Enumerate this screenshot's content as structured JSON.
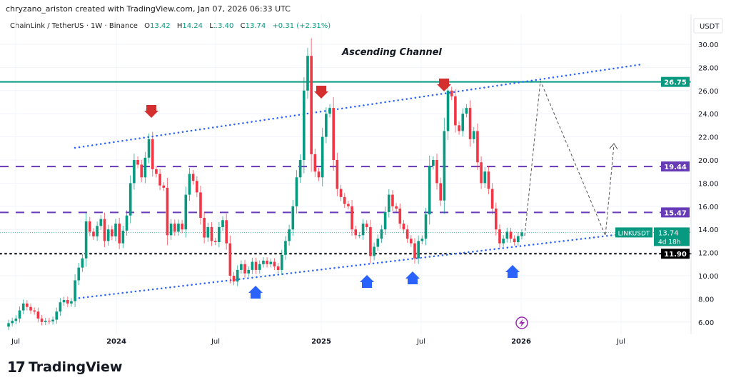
{
  "credit": "chryzano_ariston created with TradingView.com, Jan 07, 2026 06:33 UTC",
  "legend": {
    "symbol": "ChainLink / TetherUS · 1W · Binance",
    "o_label": "O",
    "o": "13.42",
    "h_label": "H",
    "h": "14.24",
    "l_label": "L",
    "l": "13.40",
    "c_label": "C",
    "c": "13.74",
    "change": "+0.31 (+2.31%)"
  },
  "logo": {
    "mark": "17",
    "text": "TradingView"
  },
  "colors": {
    "up": "#089981",
    "down": "#f23645",
    "resistance": "#089981",
    "levels": "#673ab7",
    "channel": "#2962ff",
    "support": "#000000",
    "arrow_down": "#d32f2f",
    "arrow_up": "#2962ff"
  },
  "chart_data": {
    "type": "candlestick",
    "interval": "1W",
    "title": "Ascending Channel",
    "currency": "USDT",
    "ylim": [
      5,
      31.5
    ],
    "y_ticks": [
      "6.00",
      "8.00",
      "10.00",
      "12.00",
      "14.00",
      "16.00",
      "18.00",
      "20.00",
      "22.00",
      "24.00",
      "26.00",
      "28.00",
      "30.00"
    ],
    "x_ticks": [
      "Jul",
      "2024",
      "Jul",
      "2025",
      "Jul",
      "2026",
      "Jul"
    ],
    "first_open": 5.6,
    "close": [
      5.9,
      6.1,
      6.3,
      7.0,
      7.6,
      7.3,
      7.0,
      6.9,
      6.3,
      6.0,
      6.1,
      6.05,
      6.2,
      6.9,
      7.7,
      7.9,
      7.6,
      7.8,
      9.6,
      10.7,
      11.5,
      14.7,
      13.8,
      13.4,
      14.3,
      14.9,
      13.0,
      14.0,
      13.4,
      14.5,
      12.8,
      13.9,
      15.2,
      18.0,
      20.0,
      19.6,
      18.5,
      20.2,
      21.8,
      19.2,
      18.8,
      17.8,
      17.6,
      13.5,
      14.5,
      13.8,
      14.5,
      14.0,
      17.0,
      18.8,
      18.2,
      17.2,
      15.0,
      13.3,
      14.2,
      13.0,
      12.9,
      14.2,
      14.8,
      12.8,
      10.0,
      9.5,
      10.5,
      11.0,
      10.2,
      10.5,
      11.2,
      10.5,
      11.0,
      11.3,
      11.0,
      11.2,
      10.8,
      10.5,
      11.8,
      13.0,
      14.0,
      16.0,
      18.5,
      20.0,
      26.0,
      29.0,
      20.5,
      19.0,
      18.5,
      22.0,
      24.0,
      24.5,
      20.0,
      17.5,
      16.8,
      16.2,
      16.0,
      14.0,
      13.5,
      13.5,
      14.5,
      14.2,
      11.7,
      12.5,
      13.2,
      14.0,
      15.5,
      17.0,
      16.0,
      15.8,
      14.5,
      14.0,
      13.2,
      12.8,
      11.5,
      13.0,
      13.2,
      15.3,
      19.5,
      20.0,
      18.0,
      16.5,
      22.5,
      26.0,
      25.5,
      23.0,
      22.5,
      24.0,
      24.5,
      21.8,
      22.5,
      19.8,
      18.0,
      19.0,
      17.5,
      15.8,
      14.0,
      12.8,
      13.2,
      13.8,
      13.2,
      12.9,
      13.42,
      13.74
    ],
    "levels": [
      {
        "label": "26.75",
        "value": 26.75,
        "style": "solid",
        "color": "#089981"
      },
      {
        "label": "19.44",
        "value": 19.44,
        "style": "dashed",
        "color": "#673ab7"
      },
      {
        "label": "15.47",
        "value": 15.47,
        "style": "dashed",
        "color": "#673ab7"
      },
      {
        "label": "11.90",
        "value": 11.9,
        "style": "dotted",
        "color": "#000000"
      }
    ],
    "last_price": {
      "symbol": "LINKUSDT",
      "value": "13.74",
      "countdown": "4d 18h"
    }
  }
}
